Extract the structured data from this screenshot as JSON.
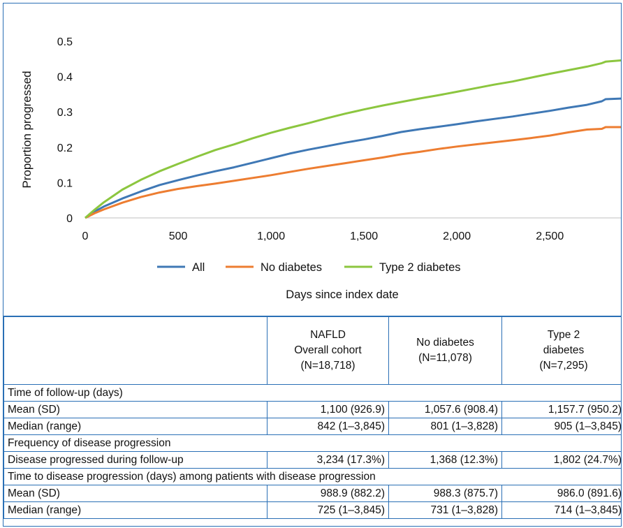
{
  "chart_data": {
    "type": "line",
    "xlabel": "Days since index date",
    "ylabel": "Proportion progressed",
    "xlim": [
      0,
      2890
    ],
    "ylim": [
      0,
      0.5
    ],
    "x_ticks": [
      0,
      500,
      1000,
      1500,
      2000,
      2500
    ],
    "x_tick_labels": [
      "0",
      "500",
      "1,000",
      "1,500",
      "2,000",
      "2,500"
    ],
    "y_ticks": [
      0,
      0.1,
      0.2,
      0.3,
      0.4,
      0.5
    ],
    "y_tick_labels": [
      "0",
      "0.1",
      "0.2",
      "0.3",
      "0.4",
      "0.5"
    ],
    "grid": false,
    "legend_position": "bottom",
    "x": [
      0,
      50,
      100,
      200,
      300,
      400,
      500,
      600,
      700,
      800,
      900,
      1000,
      1100,
      1200,
      1300,
      1400,
      1500,
      1600,
      1700,
      1800,
      1900,
      2000,
      2100,
      2200,
      2300,
      2400,
      2500,
      2600,
      2700,
      2780,
      2800,
      2890
    ],
    "series": [
      {
        "name": "All",
        "color": "#3f78b5",
        "values": [
          0,
          0.018,
          0.032,
          0.055,
          0.075,
          0.093,
          0.107,
          0.12,
          0.132,
          0.143,
          0.156,
          0.169,
          0.182,
          0.193,
          0.203,
          0.213,
          0.222,
          0.232,
          0.243,
          0.251,
          0.258,
          0.265,
          0.273,
          0.28,
          0.287,
          0.295,
          0.303,
          0.312,
          0.32,
          0.33,
          0.336,
          0.338
        ]
      },
      {
        "name": "No diabetes",
        "color": "#ed7d31",
        "values": [
          0,
          0.013,
          0.024,
          0.043,
          0.059,
          0.072,
          0.082,
          0.09,
          0.097,
          0.105,
          0.113,
          0.121,
          0.13,
          0.139,
          0.147,
          0.155,
          0.163,
          0.171,
          0.18,
          0.187,
          0.195,
          0.202,
          0.208,
          0.214,
          0.22,
          0.226,
          0.233,
          0.242,
          0.25,
          0.252,
          0.257,
          0.257
        ]
      },
      {
        "name": "Type 2 diabetes",
        "color": "#8cc63f",
        "values": [
          0,
          0.023,
          0.044,
          0.08,
          0.108,
          0.132,
          0.153,
          0.173,
          0.192,
          0.208,
          0.225,
          0.241,
          0.255,
          0.268,
          0.282,
          0.295,
          0.307,
          0.318,
          0.328,
          0.338,
          0.347,
          0.357,
          0.367,
          0.377,
          0.386,
          0.397,
          0.408,
          0.418,
          0.428,
          0.438,
          0.442,
          0.446
        ]
      }
    ]
  },
  "table": {
    "headers": [
      "",
      "NAFLD\nOverall cohort\n(N=18,718)",
      "No diabetes\n(N=11,078)",
      "Type 2\ndiabetes\n(N=7,295)"
    ],
    "rows": [
      {
        "type": "section",
        "label": "Time of follow-up (days)"
      },
      {
        "type": "data",
        "label": "Mean (SD)",
        "values": [
          "1,100 (926.9)",
          "1,057.6 (908.4)",
          "1,157.7 (950.2)"
        ]
      },
      {
        "type": "data",
        "label": "Median (range)",
        "values": [
          "842 (1–3,845)",
          "801 (1–3,828)",
          "905 (1–3,845)"
        ]
      },
      {
        "type": "section",
        "label": "Frequency of disease progression"
      },
      {
        "type": "data",
        "label": "Disease progressed during follow-up",
        "values": [
          "3,234 (17.3%)",
          "1,368 (12.3%)",
          "1,802 (24.7%)"
        ]
      },
      {
        "type": "section",
        "label": "Time to disease progression (days) among patients with disease progression"
      },
      {
        "type": "data",
        "label": "Mean (SD)",
        "values": [
          "988.9 (882.2)",
          "988.3 (875.7)",
          "986.0 (891.6)"
        ]
      },
      {
        "type": "data",
        "label": "Median (range)",
        "values": [
          "725 (1–3,845)",
          "731 (1–3,828)",
          "714 (1–3,845)"
        ]
      }
    ]
  }
}
